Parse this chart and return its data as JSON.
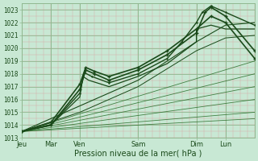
{
  "bg_color": "#c8e8d4",
  "grid_minor_color": "#dba8a8",
  "grid_major_color": "#90b890",
  "line_color": "#2a6e2a",
  "line_color_dark": "#1a4a1a",
  "ylim": [
    1013,
    1023.5
  ],
  "ytick_vals": [
    1013,
    1014,
    1015,
    1016,
    1017,
    1018,
    1019,
    1020,
    1021,
    1022,
    1023
  ],
  "day_labels": [
    "Jeu",
    "Mar",
    "Ven",
    "Sam",
    "Dim",
    "Lun"
  ],
  "day_positions": [
    0,
    1,
    2,
    4,
    6,
    7
  ],
  "total": 8,
  "xlabel": "Pression niveau de la mer( hPa )",
  "fan_lines": [
    [
      0.0,
      1013.5,
      8.0,
      1018.0
    ],
    [
      0.0,
      1013.5,
      8.0,
      1019.0
    ],
    [
      0.0,
      1013.5,
      8.0,
      1017.0
    ],
    [
      0.0,
      1013.5,
      8.0,
      1016.0
    ],
    [
      0.0,
      1013.5,
      8.0,
      1015.0
    ],
    [
      0.0,
      1013.5,
      8.0,
      1014.5
    ]
  ],
  "curved_lines": [
    {
      "pts_x": [
        0.0,
        1.0,
        2.0,
        2.2,
        2.5,
        3.0,
        4.0,
        5.0,
        6.0,
        6.5,
        7.0,
        8.0
      ],
      "pts_y": [
        1013.5,
        1014.2,
        1017.2,
        1018.5,
        1018.2,
        1017.8,
        1018.5,
        1019.8,
        1021.5,
        1022.5,
        1022.0,
        1019.2
      ],
      "lw": 1.2,
      "marker": "+",
      "ms": 3
    },
    {
      "pts_x": [
        0.0,
        1.0,
        2.0,
        2.2,
        2.5,
        3.0,
        4.0,
        5.0,
        6.0,
        6.3,
        6.5,
        7.0,
        8.0
      ],
      "pts_y": [
        1013.5,
        1014.0,
        1016.8,
        1018.3,
        1018.0,
        1017.5,
        1018.3,
        1019.5,
        1021.2,
        1022.8,
        1023.2,
        1022.5,
        1019.8
      ],
      "lw": 1.2,
      "marker": "+",
      "ms": 3
    },
    {
      "pts_x": [
        0.0,
        1.0,
        2.0,
        2.15,
        2.4,
        3.0,
        4.0,
        5.0,
        5.5,
        6.0,
        6.2,
        6.5,
        7.0,
        8.0
      ],
      "pts_y": [
        1013.5,
        1014.0,
        1016.5,
        1018.1,
        1017.8,
        1017.3,
        1018.0,
        1019.2,
        1020.5,
        1022.0,
        1022.8,
        1023.3,
        1022.8,
        1021.8
      ],
      "lw": 1.0,
      "marker": "+",
      "ms": 2
    },
    {
      "pts_x": [
        0.0,
        1.0,
        2.0,
        2.1,
        2.3,
        3.0,
        4.0,
        5.0,
        6.0,
        6.0,
        6.5,
        7.0,
        8.0
      ],
      "pts_y": [
        1013.5,
        1014.0,
        1016.2,
        1017.8,
        1017.5,
        1017.0,
        1017.8,
        1018.8,
        1020.5,
        1021.5,
        1021.8,
        1021.5,
        1021.5
      ],
      "lw": 0.9,
      "marker": null,
      "ms": 0
    },
    {
      "pts_x": [
        0.0,
        2.0,
        4.0,
        6.0,
        7.0,
        8.0
      ],
      "pts_y": [
        1013.5,
        1015.5,
        1017.5,
        1020.5,
        1021.8,
        1022.0
      ],
      "lw": 0.8,
      "marker": null,
      "ms": 0
    },
    {
      "pts_x": [
        0.0,
        2.0,
        4.0,
        6.0,
        7.0,
        8.0
      ],
      "pts_y": [
        1013.5,
        1015.0,
        1017.0,
        1019.8,
        1020.8,
        1021.0
      ],
      "lw": 0.7,
      "marker": null,
      "ms": 0
    }
  ]
}
